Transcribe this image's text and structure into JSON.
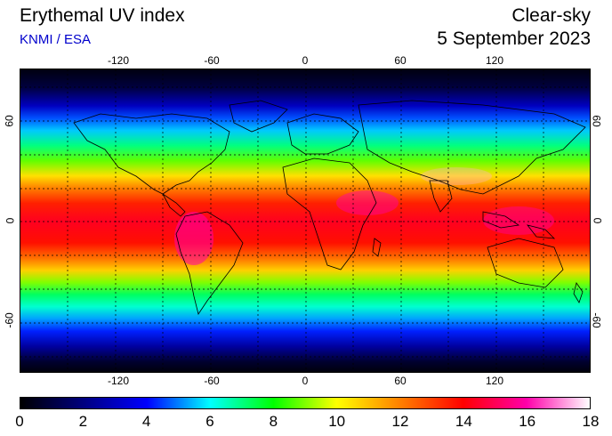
{
  "header": {
    "title": "Erythemal UV index",
    "credit": "KNMI / ESA",
    "condition": "Clear-sky",
    "date": "5 September 2023"
  },
  "map": {
    "longitude_ticks": [
      "-120",
      "-60",
      "0",
      "60",
      "120"
    ],
    "latitude_ticks": [
      "60",
      "0",
      "-60"
    ],
    "gridlines": true
  },
  "colorbar": {
    "labels": [
      "0",
      "2",
      "4",
      "6",
      "8",
      "10",
      "12",
      "14",
      "16",
      "18"
    ],
    "min": 0,
    "max": 18,
    "colors": [
      "#000000",
      "#000080",
      "#0000ff",
      "#00ffff",
      "#00ff00",
      "#ffff00",
      "#ff8000",
      "#ff0000",
      "#ff00aa",
      "#ffffff"
    ]
  }
}
